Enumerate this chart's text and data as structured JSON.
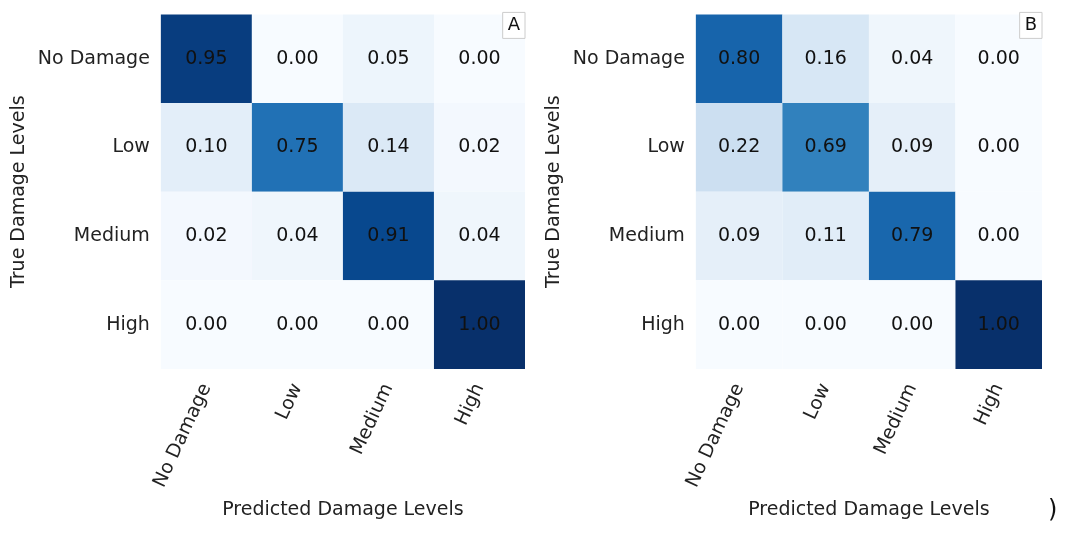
{
  "chart_data": [
    {
      "type": "heatmap",
      "title": "A",
      "xlabel": "Predicted Damage Levels",
      "ylabel": "True Damage Levels",
      "categories": [
        "No Damage",
        "Low",
        "Medium",
        "High"
      ],
      "y_categories": [
        "No Damage",
        "Low",
        "Medium",
        "High"
      ],
      "cells": [
        [
          0.95,
          0.0,
          0.05,
          0.0
        ],
        [
          0.1,
          0.75,
          0.14,
          0.02
        ],
        [
          0.02,
          0.04,
          0.91,
          0.04
        ],
        [
          0.0,
          0.0,
          0.0,
          1.0
        ]
      ],
      "cell_labels": [
        [
          "0.95",
          "0.00",
          "0.05",
          "0.00"
        ],
        [
          "0.10",
          "0.75",
          "0.14",
          "0.02"
        ],
        [
          "0.02",
          "0.04",
          "0.91",
          "0.04"
        ],
        [
          "0.00",
          "0.00",
          "0.00",
          "1.00"
        ]
      ]
    },
    {
      "type": "heatmap",
      "title": "B",
      "xlabel": "Predicted Damage Levels",
      "ylabel": "True Damage Levels",
      "categories": [
        "No Damage",
        "Low",
        "Medium",
        "High"
      ],
      "y_categories": [
        "No Damage",
        "Low",
        "Medium",
        "High"
      ],
      "cells": [
        [
          0.8,
          0.16,
          0.04,
          0.0
        ],
        [
          0.22,
          0.69,
          0.09,
          0.0
        ],
        [
          0.09,
          0.11,
          0.79,
          0.0
        ],
        [
          0.0,
          0.0,
          0.0,
          1.0
        ]
      ],
      "cell_labels": [
        [
          "0.80",
          "0.16",
          "0.04",
          "0.00"
        ],
        [
          "0.22",
          "0.69",
          "0.09",
          "0.00"
        ],
        [
          "0.09",
          "0.11",
          "0.79",
          "0.00"
        ],
        [
          "0.00",
          "0.00",
          "0.00",
          "1.00"
        ]
      ],
      "annotations": [
        ")"
      ]
    }
  ]
}
